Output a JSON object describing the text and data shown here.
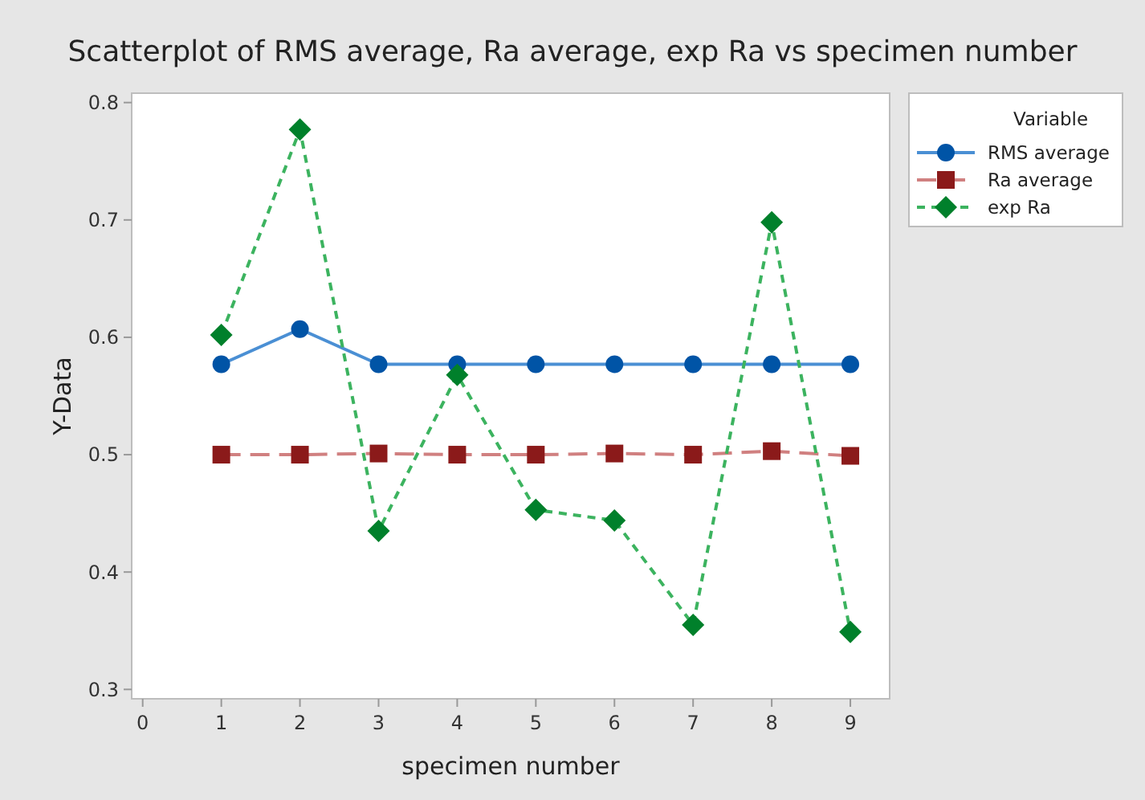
{
  "chart_data": {
    "type": "line",
    "title": "Scatterplot of RMS average, Ra average, exp Ra vs specimen number",
    "xlabel": "specimen number",
    "ylabel": "Y-Data",
    "legend_title": "Variable",
    "x": [
      1,
      2,
      3,
      4,
      5,
      6,
      7,
      8,
      9
    ],
    "xlim": [
      -0.14,
      9.5
    ],
    "xticks": [
      0,
      1,
      2,
      3,
      4,
      5,
      6,
      7,
      8,
      9
    ],
    "ylim": [
      0.292,
      0.808
    ],
    "yticks": [
      0.3,
      0.4,
      0.5,
      0.6,
      0.7,
      0.8
    ],
    "legend": "right",
    "grid": false,
    "series": [
      {
        "name": "RMS average",
        "color": "#0054a6",
        "values": [
          0.577,
          0.607,
          0.577,
          0.577,
          0.577,
          0.577,
          0.577,
          0.577,
          0.577
        ],
        "marker": "circle",
        "line_style": "solid"
      },
      {
        "name": "Ra average",
        "color": "#8b1a1a",
        "values": [
          0.5,
          0.5,
          0.501,
          0.5,
          0.5,
          0.501,
          0.5,
          0.503,
          0.499
        ],
        "marker": "square",
        "line_style": "dashed"
      },
      {
        "name": "exp Ra",
        "color": "#00802b",
        "values": [
          0.602,
          0.777,
          0.435,
          0.568,
          0.453,
          0.444,
          0.355,
          0.698,
          0.349
        ],
        "marker": "diamond",
        "line_style": "dotted"
      }
    ]
  }
}
